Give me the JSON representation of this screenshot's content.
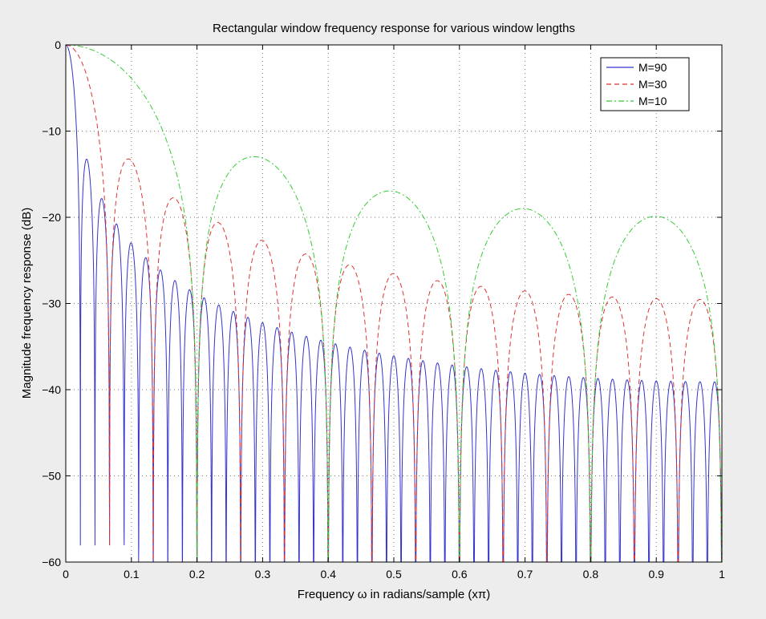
{
  "chart_data": {
    "type": "line",
    "title": "Rectangular window frequency response for various window lengths",
    "xlabel": "Frequency ω in radians/sample (xπ)",
    "ylabel": "Magnitude frequency response (dB)",
    "xlim": [
      0,
      1
    ],
    "ylim": [
      -60,
      0
    ],
    "xticks": [
      0,
      0.1,
      0.2,
      0.3,
      0.4,
      0.5,
      0.6,
      0.7,
      0.8,
      0.9,
      1
    ],
    "yticks": [
      0,
      -10,
      -20,
      -30,
      -40,
      -50,
      -60
    ],
    "xtick_labels": [
      "0",
      "0.1",
      "0.2",
      "0.3",
      "0.4",
      "0.5",
      "0.6",
      "0.7",
      "0.8",
      "0.9",
      "1"
    ],
    "ytick_labels": [
      "0",
      "−10",
      "−20",
      "−30",
      "−40",
      "−50",
      "−60"
    ],
    "grid": true,
    "legend_position": "top-right",
    "series": [
      {
        "name": "M=90",
        "window_length": 90,
        "color": "#3333cc",
        "dash": "solid"
      },
      {
        "name": "M=30",
        "window_length": 30,
        "color": "#dd3333",
        "dash": "dashed"
      },
      {
        "name": "M=10",
        "window_length": 10,
        "color": "#33cc33",
        "dash": "dashdot"
      }
    ]
  }
}
